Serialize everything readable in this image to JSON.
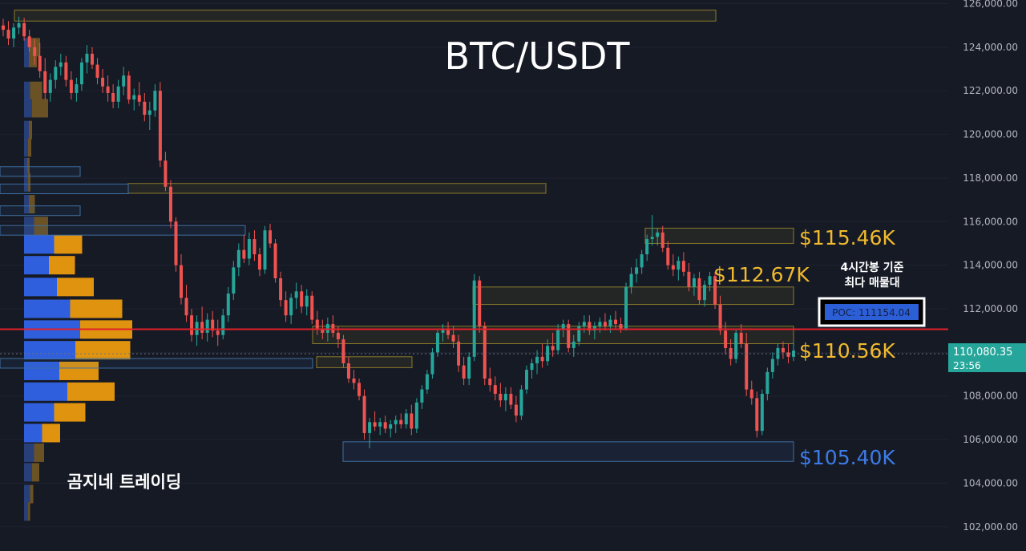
{
  "header": {
    "title": "BTC/USDT"
  },
  "watermark": "곰지네 트레이딩",
  "annotation": {
    "line1": "4시간봉 기준",
    "line2": "최다 매물대"
  },
  "chart_data": {
    "type": "candlestick",
    "title": "BTC/USDT",
    "y_axis": {
      "range": [
        101500,
        126300
      ],
      "ticks": [
        102000,
        104000,
        106000,
        108000,
        110000,
        112000,
        114000,
        116000,
        118000,
        120000,
        122000,
        124000,
        126000
      ],
      "tick_labels": [
        "102,000.00",
        "104,000.00",
        "106,000.00",
        "108,000.00",
        "110,000.00",
        "112,000.00",
        "114,000.00",
        "116,000.00",
        "118,000.00",
        "120,000.00",
        "122,000.00",
        "124,000.00",
        "126,000.00"
      ]
    },
    "last_price": {
      "value": 110080.35,
      "label": "110,080.35",
      "countdown": "23:56",
      "color": "#26a69a"
    },
    "poc": {
      "value": 111154.04,
      "label": "POC: 111154.04"
    },
    "price_labels": [
      {
        "text": "$115.46K",
        "value": 115460,
        "color": "#f0b92e"
      },
      {
        "text": "$112.67K",
        "value": 112670,
        "color": "#f0b92e"
      },
      {
        "text": "$110.56K",
        "value": 110560,
        "color": "#f0b92e"
      },
      {
        "text": "$105.40K",
        "value": 105400,
        "color": "#3d7be6"
      }
    ],
    "zones": [
      {
        "kind": "supply",
        "from": 125200,
        "to": 125700
      },
      {
        "kind": "supply",
        "from": 117300,
        "to": 117750
      },
      {
        "kind": "supply",
        "from": 115000,
        "to": 115700
      },
      {
        "kind": "supply",
        "from": 112200,
        "to": 113000
      },
      {
        "kind": "supply",
        "from": 110400,
        "to": 111200
      },
      {
        "kind": "supply",
        "from": 109300,
        "to": 109800
      },
      {
        "kind": "demand",
        "from": 105000,
        "to": 105900
      }
    ],
    "volume_profile": [
      {
        "price": 124000,
        "buy": 15,
        "sell": 25
      },
      {
        "price": 123500,
        "buy": 12,
        "sell": 20
      },
      {
        "price": 122000,
        "buy": 15,
        "sell": 30
      },
      {
        "price": 121200,
        "buy": 20,
        "sell": 40
      },
      {
        "price": 120200,
        "buy": 12,
        "sell": 8
      },
      {
        "price": 119400,
        "buy": 10,
        "sell": 8
      },
      {
        "price": 118500,
        "buy": 8,
        "sell": 6
      },
      {
        "price": 117800,
        "buy": 10,
        "sell": 6
      },
      {
        "price": 116800,
        "buy": 12,
        "sell": 15
      },
      {
        "price": 115800,
        "buy": 25,
        "sell": 35
      },
      {
        "price": 114950,
        "buy": 75,
        "sell": 70
      },
      {
        "price": 114000,
        "buy": 62,
        "sell": 65
      },
      {
        "price": 113000,
        "buy": 82,
        "sell": 92
      },
      {
        "price": 112000,
        "buy": 115,
        "sell": 130
      },
      {
        "price": 111050,
        "buy": 140,
        "sell": 130
      },
      {
        "price": 110100,
        "buy": 128,
        "sell": 137
      },
      {
        "price": 109150,
        "buy": 88,
        "sell": 98
      },
      {
        "price": 108200,
        "buy": 108,
        "sell": 118
      },
      {
        "price": 107250,
        "buy": 75,
        "sell": 78
      },
      {
        "price": 106300,
        "buy": 45,
        "sell": 45
      },
      {
        "price": 105400,
        "buy": 25,
        "sell": 25
      },
      {
        "price": 104500,
        "buy": 20,
        "sell": 18
      },
      {
        "price": 103500,
        "buy": 15,
        "sell": 8
      },
      {
        "price": 102700,
        "buy": 10,
        "sell": 5
      }
    ],
    "candles": [
      [
        125000,
        125300,
        124500,
        124800
      ],
      [
        124800,
        125200,
        124100,
        124400
      ],
      [
        124400,
        125100,
        124000,
        124900
      ],
      [
        124900,
        125400,
        124600,
        125100
      ],
      [
        125100,
        125350,
        124300,
        124500
      ],
      [
        124500,
        124800,
        123800,
        124000
      ],
      [
        124000,
        124400,
        123200,
        123600
      ],
      [
        123600,
        124200,
        122600,
        122900
      ],
      [
        122900,
        123500,
        121600,
        121900
      ],
      [
        121900,
        122800,
        121500,
        122500
      ],
      [
        122500,
        123400,
        122100,
        123100
      ],
      [
        123100,
        123700,
        122700,
        123300
      ],
      [
        123300,
        123600,
        122200,
        122500
      ],
      [
        122500,
        122900,
        121600,
        121900
      ],
      [
        121900,
        122600,
        121500,
        122300
      ],
      [
        122300,
        123500,
        122000,
        123300
      ],
      [
        123300,
        124100,
        122800,
        123700
      ],
      [
        123700,
        124000,
        123000,
        123200
      ],
      [
        123200,
        123500,
        122300,
        122600
      ],
      [
        122600,
        123000,
        121900,
        122200
      ],
      [
        122200,
        122700,
        121500,
        121900
      ],
      [
        121900,
        122300,
        121200,
        121500
      ],
      [
        121500,
        122500,
        121200,
        122200
      ],
      [
        122200,
        123100,
        121800,
        122700
      ],
      [
        122700,
        122900,
        121400,
        121600
      ],
      [
        121600,
        122100,
        121100,
        121800
      ],
      [
        121800,
        122400,
        121300,
        121500
      ],
      [
        121500,
        121900,
        120600,
        120900
      ],
      [
        120900,
        121500,
        120200,
        121100
      ],
      [
        121100,
        122300,
        120800,
        122000
      ],
      [
        122000,
        122400,
        118500,
        118800
      ],
      [
        118800,
        119200,
        117400,
        117600
      ],
      [
        117600,
        117900,
        115700,
        116000
      ],
      [
        116000,
        116200,
        113700,
        114000
      ],
      [
        114000,
        114500,
        112200,
        112500
      ],
      [
        112500,
        113100,
        111400,
        111700
      ],
      [
        111700,
        112000,
        110500,
        110800
      ],
      [
        110800,
        111700,
        110300,
        111400
      ],
      [
        111400,
        112100,
        110600,
        110900
      ],
      [
        110900,
        111800,
        110500,
        111500
      ],
      [
        111500,
        111900,
        110700,
        111000
      ],
      [
        111000,
        111500,
        110300,
        110800
      ],
      [
        110800,
        112000,
        110600,
        111700
      ],
      [
        111700,
        113000,
        111400,
        112700
      ],
      [
        112700,
        114200,
        112400,
        113900
      ],
      [
        113900,
        115000,
        113500,
        114700
      ],
      [
        114700,
        115400,
        114100,
        114300
      ],
      [
        114300,
        115500,
        114000,
        115200
      ],
      [
        115200,
        115600,
        114200,
        114500
      ],
      [
        114500,
        114800,
        113500,
        113800
      ],
      [
        113800,
        115800,
        113600,
        115600
      ],
      [
        115600,
        115900,
        114800,
        115000
      ],
      [
        115000,
        115200,
        113200,
        113400
      ],
      [
        113400,
        113700,
        112100,
        112400
      ],
      [
        112400,
        112800,
        111400,
        111700
      ],
      [
        111700,
        112700,
        111300,
        112500
      ],
      [
        112500,
        113200,
        112000,
        112800
      ],
      [
        112800,
        113100,
        111800,
        112100
      ],
      [
        112100,
        112900,
        111700,
        112600
      ],
      [
        112600,
        112800,
        111300,
        111500
      ],
      [
        111500,
        111900,
        110800,
        111100
      ],
      [
        111100,
        111500,
        110600,
        110900
      ],
      [
        110900,
        111600,
        110500,
        111300
      ],
      [
        111300,
        111700,
        110700,
        110900
      ],
      [
        110900,
        111200,
        110200,
        110600
      ],
      [
        110600,
        110800,
        109300,
        109500
      ],
      [
        109500,
        109800,
        108600,
        108800
      ],
      [
        108800,
        109200,
        108300,
        108600
      ],
      [
        108600,
        108800,
        107800,
        108000
      ],
      [
        108000,
        108300,
        106000,
        106300
      ],
      [
        106300,
        107000,
        105600,
        106800
      ],
      [
        106800,
        107300,
        106400,
        106600
      ],
      [
        106600,
        107000,
        106200,
        106800
      ],
      [
        106800,
        107100,
        106300,
        106500
      ],
      [
        106500,
        106900,
        106100,
        106700
      ],
      [
        106700,
        107100,
        106300,
        106900
      ],
      [
        106900,
        107200,
        106500,
        106700
      ],
      [
        106700,
        107400,
        106500,
        107200
      ],
      [
        107200,
        107600,
        106200,
        106500
      ],
      [
        106500,
        107900,
        106300,
        107700
      ],
      [
        107700,
        108500,
        107400,
        108300
      ],
      [
        108300,
        109200,
        108100,
        109000
      ],
      [
        109000,
        110200,
        108800,
        110000
      ],
      [
        110000,
        111100,
        109800,
        110900
      ],
      [
        110900,
        111300,
        110500,
        111100
      ],
      [
        111100,
        111400,
        110600,
        110800
      ],
      [
        110800,
        111200,
        110200,
        110500
      ],
      [
        110500,
        110800,
        109100,
        109400
      ],
      [
        109400,
        109800,
        108500,
        108800
      ],
      [
        108800,
        110000,
        108500,
        109800
      ],
      [
        109800,
        113600,
        109600,
        113300
      ],
      [
        113300,
        113500,
        110900,
        111200
      ],
      [
        111200,
        111400,
        108500,
        108800
      ],
      [
        108800,
        109300,
        108200,
        108500
      ],
      [
        108500,
        108900,
        107800,
        108100
      ],
      [
        108100,
        108600,
        107500,
        107800
      ],
      [
        107800,
        108400,
        107300,
        108100
      ],
      [
        108100,
        108400,
        107400,
        107600
      ],
      [
        107600,
        108000,
        106800,
        107100
      ],
      [
        107100,
        108500,
        106900,
        108300
      ],
      [
        108300,
        109400,
        108100,
        109200
      ],
      [
        109200,
        109700,
        108800,
        109500
      ],
      [
        109500,
        110100,
        109000,
        109800
      ],
      [
        109800,
        110400,
        109300,
        109600
      ],
      [
        109600,
        110600,
        109400,
        110300
      ],
      [
        110300,
        110900,
        109800,
        110100
      ],
      [
        110100,
        111300,
        109900,
        111100
      ],
      [
        111100,
        111500,
        110700,
        111300
      ],
      [
        111300,
        111500,
        110000,
        110200
      ],
      [
        110200,
        110800,
        109800,
        110500
      ],
      [
        110500,
        111400,
        110300,
        111200
      ],
      [
        111200,
        111700,
        110900,
        111400
      ],
      [
        111400,
        111700,
        110800,
        111000
      ],
      [
        111000,
        111400,
        110600,
        111200
      ],
      [
        111200,
        111600,
        110900,
        111400
      ],
      [
        111400,
        111800,
        111000,
        111200
      ],
      [
        111200,
        111700,
        110900,
        111500
      ],
      [
        111500,
        111900,
        111100,
        111300
      ],
      [
        111300,
        111600,
        110900,
        111100
      ],
      [
        111100,
        113200,
        111000,
        113000
      ],
      [
        113000,
        113900,
        112700,
        113600
      ],
      [
        113600,
        114300,
        113200,
        113900
      ],
      [
        113900,
        114700,
        113600,
        114500
      ],
      [
        114500,
        115400,
        114200,
        115200
      ],
      [
        115200,
        116300,
        114900,
        115300
      ],
      [
        115300,
        115700,
        114900,
        115500
      ],
      [
        115500,
        115800,
        114600,
        114800
      ],
      [
        114800,
        115100,
        113800,
        114000
      ],
      [
        114000,
        114500,
        113500,
        113800
      ],
      [
        113800,
        114400,
        113300,
        114200
      ],
      [
        114200,
        114600,
        113500,
        113700
      ],
      [
        113700,
        114100,
        112800,
        113000
      ],
      [
        113000,
        113600,
        112600,
        113400
      ],
      [
        113400,
        113700,
        112200,
        112400
      ],
      [
        112400,
        113300,
        112100,
        113100
      ],
      [
        113100,
        113700,
        112800,
        113500
      ],
      [
        113500,
        113700,
        112000,
        112200
      ],
      [
        112200,
        112600,
        110800,
        111000
      ],
      [
        111000,
        111400,
        109900,
        110200
      ],
      [
        110200,
        110600,
        109400,
        109700
      ],
      [
        109700,
        111100,
        109500,
        110900
      ],
      [
        110900,
        111300,
        110200,
        110400
      ],
      [
        110400,
        110900,
        108000,
        108300
      ],
      [
        108300,
        108700,
        107600,
        107900
      ],
      [
        107900,
        108200,
        106100,
        106400
      ],
      [
        106400,
        108300,
        106200,
        108100
      ],
      [
        108100,
        109300,
        107800,
        109100
      ],
      [
        109100,
        110000,
        108800,
        109700
      ],
      [
        109700,
        110400,
        109400,
        110200
      ],
      [
        110200,
        110500,
        109700,
        110000
      ],
      [
        110000,
        110400,
        109500,
        109800
      ],
      [
        109800,
        110500,
        109600,
        110080
      ]
    ]
  }
}
